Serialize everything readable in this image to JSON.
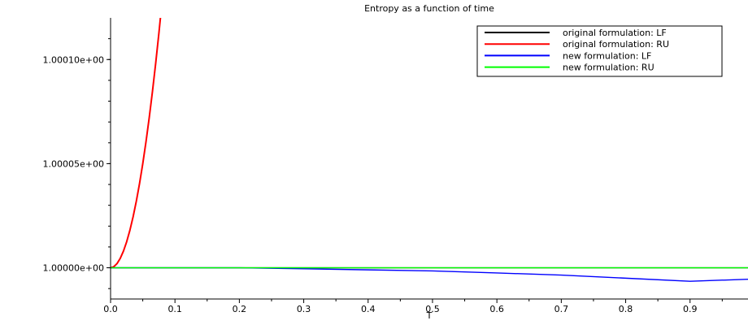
{
  "chart_data": {
    "type": "line",
    "title": "Entropy as a function of time",
    "xlabel": "T",
    "ylabel": "",
    "xlim": [
      0.0,
      0.99
    ],
    "ylim": [
      0.999985,
      1.00012
    ],
    "x_ticks": [
      0.0,
      0.1,
      0.2,
      0.3,
      0.4,
      0.5,
      0.6,
      0.7,
      0.8,
      0.9
    ],
    "x_tick_labels": [
      "0.0",
      "0.1",
      "0.2",
      "0.3",
      "0.4",
      "0.5",
      "0.6",
      "0.7",
      "0.8",
      "0.9"
    ],
    "y_ticks": [
      1.0,
      1.00005,
      1.0001
    ],
    "y_tick_labels": [
      "1.00000e+00",
      "1.00005e+00",
      "1.00010e+00"
    ],
    "legend_position": "top-right",
    "grid": false,
    "series": [
      {
        "name": "original formulation: LF",
        "color": "#000000",
        "x": [
          0.0,
          0.99
        ],
        "y": [
          1.0,
          1.0
        ]
      },
      {
        "name": "original formulation: RU",
        "color": "#ff0000",
        "x": [
          0.0,
          0.005,
          0.01,
          0.015,
          0.02,
          0.025,
          0.03,
          0.035,
          0.04,
          0.045,
          0.05,
          0.055,
          0.06,
          0.065,
          0.07,
          0.075,
          0.08,
          0.085
        ],
        "y": [
          1.0,
          1.0000005,
          1.000002,
          1.0000045,
          1.000008,
          1.0000125,
          1.000018,
          1.0000245,
          1.000032,
          1.0000405,
          1.00005,
          1.0000605,
          1.000072,
          1.0000845,
          1.000098,
          1.0001125,
          1.000128,
          1.0001445
        ]
      },
      {
        "name": "new formulation: LF",
        "color": "#0000ff",
        "x": [
          0.0,
          0.1,
          0.2,
          0.3,
          0.4,
          0.5,
          0.6,
          0.7,
          0.8,
          0.9,
          0.99
        ],
        "y": [
          1.0,
          1.0,
          1.0,
          0.9999995,
          0.999999,
          0.9999985,
          0.9999975,
          0.9999965,
          0.999995,
          0.9999935,
          0.9999945
        ]
      },
      {
        "name": "new formulation: RU",
        "color": "#00ff00",
        "x": [
          0.0,
          0.5,
          0.99
        ],
        "y": [
          1.0,
          1.0,
          1.0
        ]
      }
    ]
  }
}
